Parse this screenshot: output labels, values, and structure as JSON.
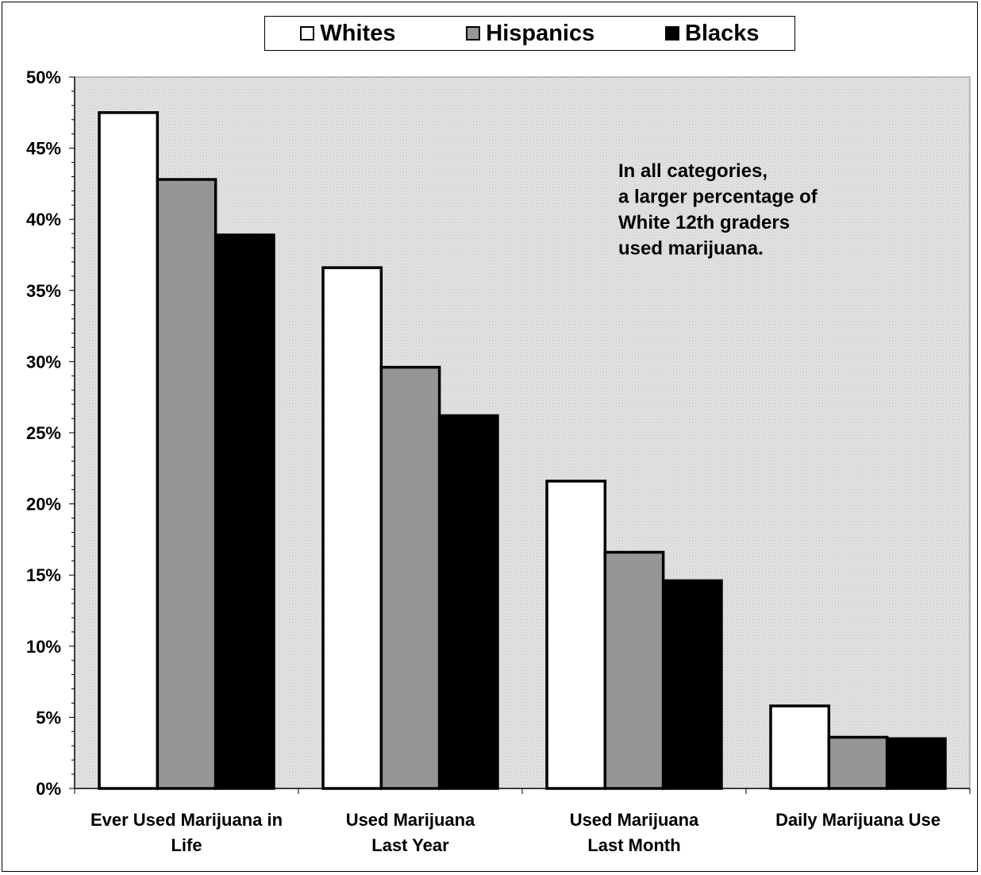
{
  "chart_data": {
    "type": "bar",
    "categories": [
      [
        "Ever Used Marijuana in",
        "Life"
      ],
      [
        "Used Marijuana",
        "Last Year"
      ],
      [
        "Used Marijuana",
        "Last Month"
      ],
      [
        "Daily Marijuana Use"
      ]
    ],
    "series": [
      {
        "name": "Whites",
        "color": "#ffffff",
        "values": [
          47.5,
          36.6,
          21.6,
          5.8
        ]
      },
      {
        "name": "Hispanics",
        "color": "#969696",
        "values": [
          42.8,
          29.6,
          16.6,
          3.6
        ]
      },
      {
        "name": "Blacks",
        "color": "#000000",
        "values": [
          38.9,
          26.2,
          14.6,
          3.5
        ]
      }
    ],
    "ylim": [
      0,
      50
    ],
    "yticks": [
      0,
      5,
      10,
      15,
      20,
      25,
      30,
      35,
      40,
      45,
      50
    ],
    "ytick_labels": [
      "0%",
      "5%",
      "10%",
      "15%",
      "20%",
      "25%",
      "30%",
      "35%",
      "40%",
      "45%",
      "50%"
    ],
    "legend_position": "top",
    "plot_background": "#dcdcdc",
    "annotation": [
      "In all categories,",
      "a larger percentage of",
      "White 12th graders",
      "used marijuana."
    ]
  }
}
